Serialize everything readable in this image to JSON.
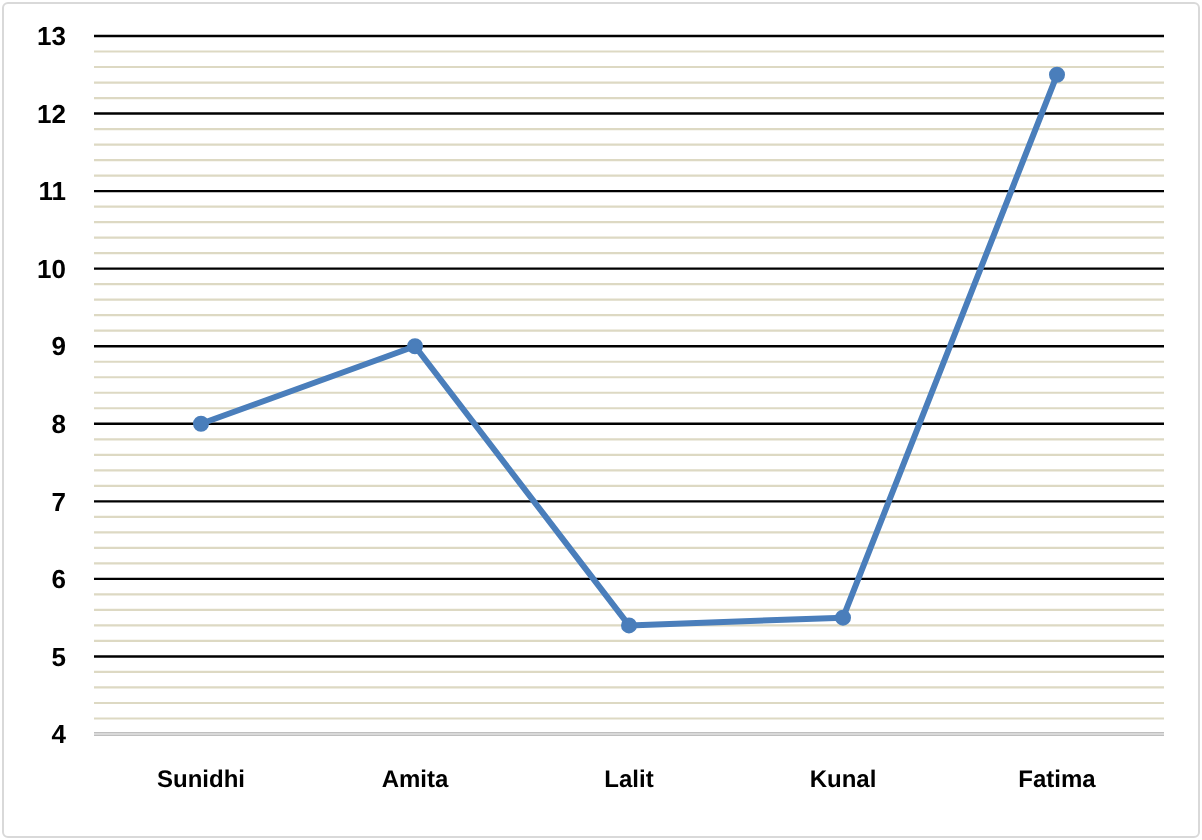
{
  "chart_data": {
    "type": "line",
    "categories": [
      "Sunidhi",
      "Amita",
      "Lalit",
      "Kunal",
      "Fatima"
    ],
    "series": [
      {
        "color": "#4a7ebb",
        "values": [
          8,
          9,
          5.4,
          5.5,
          12.5
        ]
      }
    ],
    "ylim": [
      4,
      13
    ],
    "yticks": [
      4,
      {
        "value": 4.2,
        "label": null
      },
      {
        "value": 4.4,
        "label": null
      },
      {
        "value": 4.6,
        "label": null
      },
      {
        "value": 4.8,
        "label": null
      },
      5,
      {
        "value": 5.2,
        "label": null
      },
      {
        "value": 5.4,
        "label": null
      },
      {
        "value": 5.6,
        "label": null
      },
      {
        "value": 5.8,
        "label": null
      },
      6,
      {
        "value": 6.2,
        "label": null
      },
      {
        "value": 6.4,
        "label": null
      },
      {
        "value": 6.6,
        "label": null
      },
      {
        "value": 6.8,
        "label": null
      },
      7,
      {
        "value": 7.2,
        "label": null
      },
      {
        "value": 7.4,
        "label": null
      },
      {
        "value": 7.6,
        "label": null
      },
      {
        "value": 7.8,
        "label": null
      },
      8,
      {
        "value": 8.2,
        "label": null
      },
      {
        "value": 8.4,
        "label": null
      },
      {
        "value": 8.6,
        "label": null
      },
      {
        "value": 8.8,
        "label": null
      },
      9,
      {
        "value": 9.2,
        "label": null
      },
      {
        "value": 9.4,
        "label": null
      },
      {
        "value": 9.6,
        "label": null
      },
      {
        "value": 9.8,
        "label": null
      },
      10,
      {
        "value": 10.2,
        "label": null
      },
      {
        "value": 10.4,
        "label": null
      },
      {
        "value": 10.6,
        "label": null
      },
      {
        "value": 10.8,
        "label": null
      },
      11,
      {
        "value": 11.2,
        "label": null
      },
      {
        "value": 11.4,
        "label": null
      },
      {
        "value": 11.6,
        "label": null
      },
      {
        "value": 11.8,
        "label": null
      },
      12,
      {
        "value": 12.2,
        "label": null
      },
      {
        "value": 12.4,
        "label": null
      },
      {
        "value": 12.6,
        "label": null
      },
      {
        "value": 12.8,
        "label": null
      },
      13
    ],
    "grid": "y",
    "marker": "circle",
    "line_style": "solid"
  }
}
